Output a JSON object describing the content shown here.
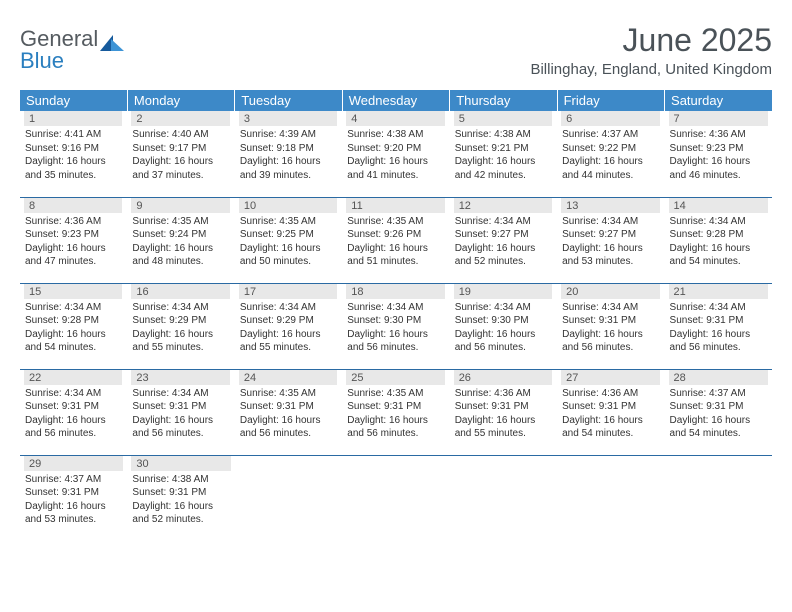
{
  "logo": {
    "part1": "General",
    "part2": "Blue"
  },
  "title": "June 2025",
  "location": "Billinghay, England, United Kingdom",
  "colors": {
    "header_bg": "#3d89c8",
    "header_text": "#ffffff",
    "daynum_bg": "#e8e8e8",
    "row_divider": "#2a6aa3",
    "title_text": "#4a5258"
  },
  "weekdays": [
    "Sunday",
    "Monday",
    "Tuesday",
    "Wednesday",
    "Thursday",
    "Friday",
    "Saturday"
  ],
  "weeks": [
    [
      {
        "n": "1",
        "sr": "4:41 AM",
        "ss": "9:16 PM",
        "dl": "16 hours and 35 minutes."
      },
      {
        "n": "2",
        "sr": "4:40 AM",
        "ss": "9:17 PM",
        "dl": "16 hours and 37 minutes."
      },
      {
        "n": "3",
        "sr": "4:39 AM",
        "ss": "9:18 PM",
        "dl": "16 hours and 39 minutes."
      },
      {
        "n": "4",
        "sr": "4:38 AM",
        "ss": "9:20 PM",
        "dl": "16 hours and 41 minutes."
      },
      {
        "n": "5",
        "sr": "4:38 AM",
        "ss": "9:21 PM",
        "dl": "16 hours and 42 minutes."
      },
      {
        "n": "6",
        "sr": "4:37 AM",
        "ss": "9:22 PM",
        "dl": "16 hours and 44 minutes."
      },
      {
        "n": "7",
        "sr": "4:36 AM",
        "ss": "9:23 PM",
        "dl": "16 hours and 46 minutes."
      }
    ],
    [
      {
        "n": "8",
        "sr": "4:36 AM",
        "ss": "9:23 PM",
        "dl": "16 hours and 47 minutes."
      },
      {
        "n": "9",
        "sr": "4:35 AM",
        "ss": "9:24 PM",
        "dl": "16 hours and 48 minutes."
      },
      {
        "n": "10",
        "sr": "4:35 AM",
        "ss": "9:25 PM",
        "dl": "16 hours and 50 minutes."
      },
      {
        "n": "11",
        "sr": "4:35 AM",
        "ss": "9:26 PM",
        "dl": "16 hours and 51 minutes."
      },
      {
        "n": "12",
        "sr": "4:34 AM",
        "ss": "9:27 PM",
        "dl": "16 hours and 52 minutes."
      },
      {
        "n": "13",
        "sr": "4:34 AM",
        "ss": "9:27 PM",
        "dl": "16 hours and 53 minutes."
      },
      {
        "n": "14",
        "sr": "4:34 AM",
        "ss": "9:28 PM",
        "dl": "16 hours and 54 minutes."
      }
    ],
    [
      {
        "n": "15",
        "sr": "4:34 AM",
        "ss": "9:28 PM",
        "dl": "16 hours and 54 minutes."
      },
      {
        "n": "16",
        "sr": "4:34 AM",
        "ss": "9:29 PM",
        "dl": "16 hours and 55 minutes."
      },
      {
        "n": "17",
        "sr": "4:34 AM",
        "ss": "9:29 PM",
        "dl": "16 hours and 55 minutes."
      },
      {
        "n": "18",
        "sr": "4:34 AM",
        "ss": "9:30 PM",
        "dl": "16 hours and 56 minutes."
      },
      {
        "n": "19",
        "sr": "4:34 AM",
        "ss": "9:30 PM",
        "dl": "16 hours and 56 minutes."
      },
      {
        "n": "20",
        "sr": "4:34 AM",
        "ss": "9:31 PM",
        "dl": "16 hours and 56 minutes."
      },
      {
        "n": "21",
        "sr": "4:34 AM",
        "ss": "9:31 PM",
        "dl": "16 hours and 56 minutes."
      }
    ],
    [
      {
        "n": "22",
        "sr": "4:34 AM",
        "ss": "9:31 PM",
        "dl": "16 hours and 56 minutes."
      },
      {
        "n": "23",
        "sr": "4:34 AM",
        "ss": "9:31 PM",
        "dl": "16 hours and 56 minutes."
      },
      {
        "n": "24",
        "sr": "4:35 AM",
        "ss": "9:31 PM",
        "dl": "16 hours and 56 minutes."
      },
      {
        "n": "25",
        "sr": "4:35 AM",
        "ss": "9:31 PM",
        "dl": "16 hours and 56 minutes."
      },
      {
        "n": "26",
        "sr": "4:36 AM",
        "ss": "9:31 PM",
        "dl": "16 hours and 55 minutes."
      },
      {
        "n": "27",
        "sr": "4:36 AM",
        "ss": "9:31 PM",
        "dl": "16 hours and 54 minutes."
      },
      {
        "n": "28",
        "sr": "4:37 AM",
        "ss": "9:31 PM",
        "dl": "16 hours and 54 minutes."
      }
    ],
    [
      {
        "n": "29",
        "sr": "4:37 AM",
        "ss": "9:31 PM",
        "dl": "16 hours and 53 minutes."
      },
      {
        "n": "30",
        "sr": "4:38 AM",
        "ss": "9:31 PM",
        "dl": "16 hours and 52 minutes."
      },
      null,
      null,
      null,
      null,
      null
    ]
  ],
  "labels": {
    "sunrise": "Sunrise: ",
    "sunset": "Sunset: ",
    "daylight": "Daylight: "
  }
}
